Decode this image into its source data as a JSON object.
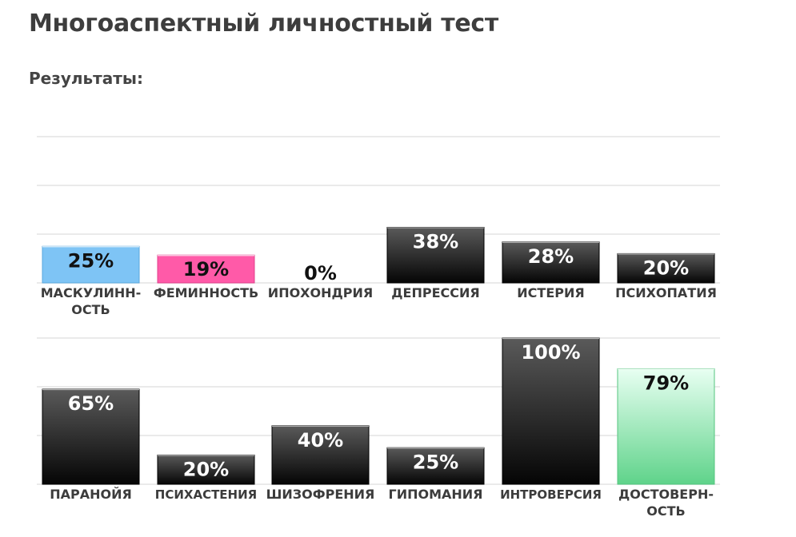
{
  "page": {
    "title": "Многоаспектный личностный тест",
    "results_label": "Результаты:"
  },
  "colors": {
    "grid": "#e4e4e4",
    "bar_dark_top": "#5a5a5a",
    "bar_dark_bottom": "#050505",
    "bar_blue": "#7ec4f5",
    "bar_pink": "#ff5aa8",
    "bar_green_top": "#e8fff2",
    "bar_green_bottom": "#5fd38a",
    "label_white": "#ffffff",
    "label_black": "#111111",
    "category_text": "#3c3c3c"
  },
  "chart_data": [
    {
      "type": "bar",
      "title": "",
      "xlabel": "",
      "ylabel": "",
      "ylim": [
        0,
        100
      ],
      "grid": true,
      "categories": [
        "МАСКУЛИНН-\nОСТЬ",
        "ФЕМИННОСТЬ",
        "ИПОХОНДРИЯ",
        "ДЕПРЕССИЯ",
        "ИСТЕРИЯ",
        "ПСИХОПАТИЯ"
      ],
      "values": [
        25,
        19,
        0,
        38,
        28,
        20
      ],
      "value_labels": [
        "25%",
        "19%",
        "0%",
        "38%",
        "28%",
        "20%"
      ],
      "bar_styles": [
        "blue",
        "pink",
        "none",
        "dark",
        "dark",
        "dark"
      ]
    },
    {
      "type": "bar",
      "title": "",
      "xlabel": "",
      "ylabel": "",
      "ylim": [
        0,
        100
      ],
      "grid": true,
      "categories": [
        "ПАРАНОЙЯ",
        "ПСИХАСТЕНИЯ",
        "ШИЗОФРЕНИЯ",
        "ГИПОМАНИЯ",
        "ИНТРОВЕРСИЯ",
        "ДОСТОВЕРН-\nОСТЬ"
      ],
      "values": [
        65,
        20,
        40,
        25,
        100,
        79
      ],
      "value_labels": [
        "65%",
        "20%",
        "40%",
        "25%",
        "100%",
        "79%"
      ],
      "bar_styles": [
        "dark",
        "dark",
        "dark",
        "dark",
        "dark",
        "green"
      ]
    }
  ]
}
